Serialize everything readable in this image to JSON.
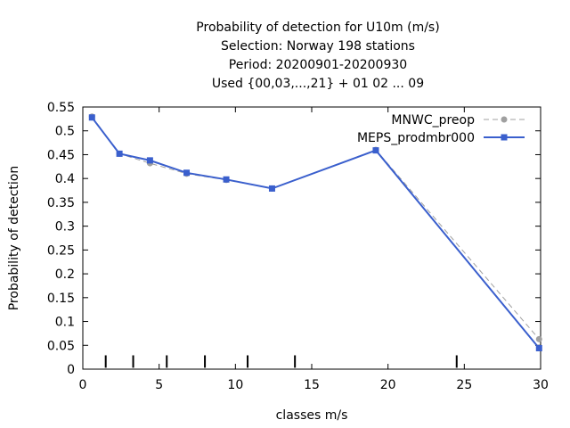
{
  "chart_data": {
    "type": "line",
    "title_lines": [
      "Probability of detection  for U10m (m/s)",
      "Selection: Norway    198 stations",
      "Period: 20200901-20200930",
      "Used {00,03,...,21} + 01 02 ... 09"
    ],
    "xlabel": "classes m/s",
    "ylabel": "Probability of detection",
    "xlim": [
      0,
      30
    ],
    "ylim": [
      0,
      0.55
    ],
    "x_ticks": [
      0,
      5,
      10,
      15,
      20,
      25,
      30
    ],
    "y_ticks": [
      0,
      0.05,
      0.1,
      0.15,
      0.2,
      0.25,
      0.3,
      0.35,
      0.4,
      0.45,
      0.5,
      0.55
    ],
    "x_tick_labels": [
      "0",
      "5",
      "10",
      "15",
      "20",
      "25",
      "30"
    ],
    "y_tick_labels": [
      "0",
      "0.05",
      "0.1",
      "0.15",
      "0.2",
      "0.25",
      "0.3",
      "0.35",
      "0.4",
      "0.45",
      "0.5",
      "0.55"
    ],
    "class_boundaries": [
      1.5,
      3.3,
      5.5,
      8.0,
      10.8,
      13.9,
      24.5
    ],
    "legend_position": "top-right",
    "series": [
      {
        "name": "MNWC_preop",
        "color": "#a0a0a0",
        "dashed": true,
        "x": [
          0.6,
          2.4,
          4.4,
          6.8,
          9.4,
          12.4,
          19.2,
          29.9
        ],
        "y": [
          0.53,
          0.452,
          0.432,
          0.41,
          0.397,
          0.379,
          0.46,
          0.063
        ]
      },
      {
        "name": "MEPS_prodmbr000",
        "color": "#3a5fcd",
        "dashed": false,
        "x": [
          0.6,
          2.4,
          4.4,
          6.8,
          9.4,
          12.4,
          19.2,
          29.9
        ],
        "y": [
          0.528,
          0.452,
          0.438,
          0.412,
          0.398,
          0.379,
          0.459,
          0.044
        ]
      }
    ]
  }
}
